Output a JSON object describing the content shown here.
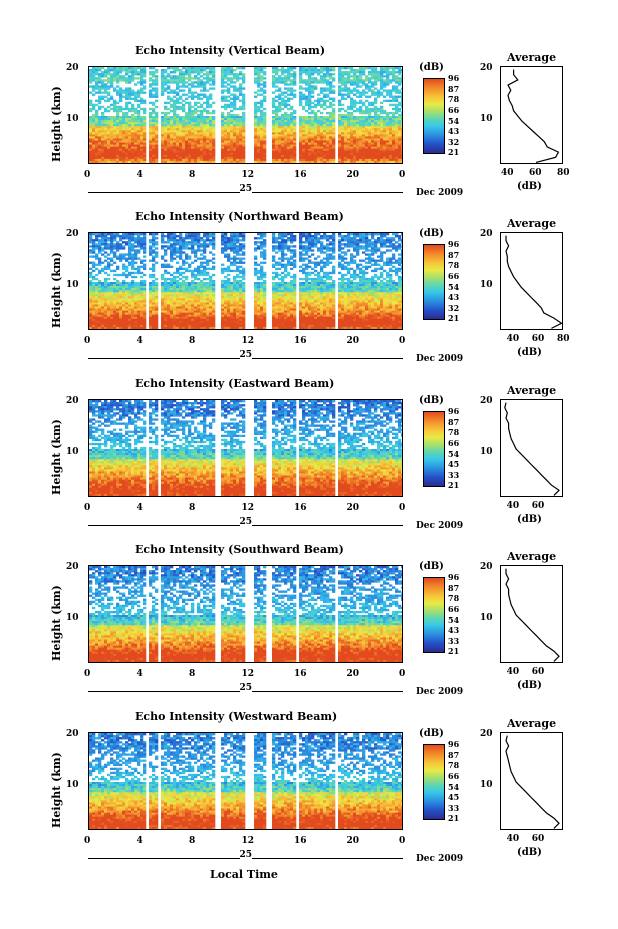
{
  "x_axis_label": "Local Time",
  "date_label": "Dec 2009",
  "day_label": "25",
  "colorbar_unit": "(dB)",
  "colorbar_ticks": [
    [
      "96",
      "87",
      "78",
      "66",
      "54",
      "43",
      "32",
      "21"
    ],
    [
      "96",
      "87",
      "78",
      "66",
      "54",
      "43",
      "32",
      "21"
    ],
    [
      "96",
      "87",
      "78",
      "66",
      "54",
      "45",
      "33",
      "21"
    ],
    [
      "96",
      "87",
      "78",
      "66",
      "54",
      "43",
      "33",
      "21"
    ],
    [
      "96",
      "87",
      "78",
      "66",
      "54",
      "45",
      "33",
      "21"
    ]
  ],
  "colors": {
    "low": "#2b2c8f",
    "mid": "#a7e06a",
    "high": "#e24a1f",
    "gap": "#ffffff"
  },
  "chart_data": [
    {
      "type": "heatmap",
      "title": "Echo Intensity (Vertical Beam)",
      "ylabel": "Height (km)",
      "xlabel": "Local Time",
      "x_ticks": [
        "0",
        "4",
        "8",
        "12",
        "16",
        "20",
        "0"
      ],
      "y_ticks": [
        "20",
        "10"
      ],
      "xlim": [
        0,
        24
      ],
      "ylim": [
        1.5,
        20.5
      ],
      "data_gaps_hours": [
        [
          4.3,
          4.6
        ],
        [
          5.2,
          5.5
        ],
        [
          9.7,
          10.0
        ],
        [
          12.0,
          12.5
        ],
        [
          13.6,
          14.0
        ],
        [
          15.8,
          16.1
        ],
        [
          16.8,
          17.0
        ],
        [
          18.7,
          19.0
        ]
      ],
      "colorbar": {
        "label": "(dB)",
        "min": 21,
        "max": 96
      },
      "average_profile": {
        "title": "Average",
        "xlabel": "(dB)",
        "x_ticks": [
          "40",
          "60",
          "80"
        ],
        "xlim": [
          35,
          80
        ],
        "y_ticks": [
          "20",
          "10"
        ],
        "height_km": [
          2,
          3,
          4,
          5,
          6,
          7,
          8,
          9,
          10,
          11,
          12,
          13,
          14,
          15,
          16,
          17,
          18,
          19,
          20
        ],
        "value_db": [
          60,
          74,
          76,
          68,
          66,
          62,
          58,
          54,
          50,
          47,
          44,
          43,
          41,
          40,
          42,
          40,
          47,
          44,
          44
        ]
      }
    },
    {
      "type": "heatmap",
      "title": "Echo Intensity (Northward Beam)",
      "ylabel": "Height (km)",
      "xlabel": "Local Time",
      "x_ticks": [
        "0",
        "4",
        "8",
        "12",
        "16",
        "20",
        "0"
      ],
      "y_ticks": [
        "20",
        "10"
      ],
      "xlim": [
        0,
        24
      ],
      "ylim": [
        1.5,
        20.5
      ],
      "data_gaps_hours": [
        [
          4.3,
          4.6
        ],
        [
          5.2,
          5.5
        ],
        [
          9.7,
          10.0
        ],
        [
          12.0,
          12.5
        ],
        [
          13.6,
          14.0
        ],
        [
          15.8,
          16.1
        ],
        [
          16.8,
          17.0
        ],
        [
          18.7,
          19.0
        ]
      ],
      "colorbar": {
        "label": "(dB)",
        "min": 21,
        "max": 96
      },
      "average_profile": {
        "title": "Average",
        "xlabel": "(dB)",
        "x_ticks": [
          "40",
          "60",
          "80"
        ],
        "xlim": [
          30,
          80
        ],
        "y_ticks": [
          "20",
          "10"
        ],
        "height_km": [
          2,
          3,
          4,
          5,
          6,
          7,
          8,
          9,
          10,
          11,
          12,
          13,
          14,
          15,
          16,
          17,
          18,
          19,
          20
        ],
        "value_db": [
          70,
          78,
          72,
          64,
          62,
          58,
          54,
          50,
          46,
          43,
          40,
          38,
          36,
          35,
          35,
          34,
          36,
          34,
          34
        ]
      }
    },
    {
      "type": "heatmap",
      "title": "Echo Intensity (Eastward Beam)",
      "ylabel": "Height (km)",
      "xlabel": "Local Time",
      "x_ticks": [
        "0",
        "4",
        "8",
        "12",
        "16",
        "20",
        "0"
      ],
      "y_ticks": [
        "20",
        "10"
      ],
      "xlim": [
        0,
        24
      ],
      "ylim": [
        1.5,
        20.5
      ],
      "data_gaps_hours": [
        [
          4.3,
          4.6
        ],
        [
          5.2,
          5.5
        ],
        [
          9.7,
          10.0
        ],
        [
          12.0,
          12.5
        ],
        [
          13.6,
          14.0
        ],
        [
          15.8,
          16.1
        ],
        [
          16.8,
          17.0
        ],
        [
          18.7,
          19.0
        ]
      ],
      "colorbar": {
        "label": "(dB)",
        "min": 21,
        "max": 96
      },
      "average_profile": {
        "title": "Average",
        "xlabel": "(dB)",
        "x_ticks": [
          "40",
          "60"
        ],
        "xlim": [
          30,
          80
        ],
        "y_ticks": [
          "20",
          "10"
        ],
        "height_km": [
          2,
          3,
          4,
          5,
          6,
          7,
          8,
          9,
          10,
          11,
          12,
          13,
          14,
          15,
          16,
          17,
          18,
          19,
          20
        ],
        "value_db": [
          72,
          76,
          70,
          66,
          62,
          58,
          54,
          50,
          46,
          42,
          40,
          38,
          37,
          36,
          36,
          34,
          35,
          33,
          34
        ]
      }
    },
    {
      "type": "heatmap",
      "title": "Echo Intensity (Southward Beam)",
      "ylabel": "Height (km)",
      "xlabel": "Local Time",
      "x_ticks": [
        "0",
        "4",
        "8",
        "12",
        "16",
        "20",
        "0"
      ],
      "y_ticks": [
        "20",
        "10"
      ],
      "xlim": [
        0,
        24
      ],
      "ylim": [
        1.5,
        20.5
      ],
      "data_gaps_hours": [
        [
          4.3,
          4.6
        ],
        [
          5.2,
          5.5
        ],
        [
          9.7,
          10.0
        ],
        [
          12.0,
          12.5
        ],
        [
          13.6,
          14.0
        ],
        [
          15.8,
          16.1
        ],
        [
          16.8,
          17.0
        ],
        [
          18.7,
          19.0
        ]
      ],
      "colorbar": {
        "label": "(dB)",
        "min": 21,
        "max": 96
      },
      "average_profile": {
        "title": "Average",
        "xlabel": "(dB)",
        "x_ticks": [
          "40",
          "60"
        ],
        "xlim": [
          30,
          80
        ],
        "y_ticks": [
          "20",
          "10"
        ],
        "height_km": [
          2,
          3,
          4,
          5,
          6,
          7,
          8,
          9,
          10,
          11,
          12,
          13,
          14,
          15,
          16,
          17,
          18,
          19,
          20
        ],
        "value_db": [
          72,
          76,
          72,
          66,
          62,
          58,
          54,
          50,
          46,
          42,
          40,
          38,
          37,
          36,
          36,
          34,
          36,
          34,
          34
        ]
      }
    },
    {
      "type": "heatmap",
      "title": "Echo Intensity (Westward Beam)",
      "ylabel": "Height (km)",
      "xlabel": "Local Time",
      "x_ticks": [
        "0",
        "4",
        "8",
        "12",
        "16",
        "20",
        "0"
      ],
      "y_ticks": [
        "20",
        "10"
      ],
      "xlim": [
        0,
        24
      ],
      "ylim": [
        1.5,
        20.5
      ],
      "data_gaps_hours": [
        [
          4.3,
          4.6
        ],
        [
          5.2,
          5.5
        ],
        [
          9.7,
          10.0
        ],
        [
          12.0,
          12.5
        ],
        [
          13.6,
          14.0
        ],
        [
          15.8,
          16.1
        ],
        [
          16.8,
          17.0
        ],
        [
          18.7,
          19.0
        ]
      ],
      "colorbar": {
        "label": "(dB)",
        "min": 21,
        "max": 96
      },
      "average_profile": {
        "title": "Average",
        "xlabel": "(dB)",
        "x_ticks": [
          "40",
          "60"
        ],
        "xlim": [
          30,
          80
        ],
        "y_ticks": [
          "20",
          "10"
        ],
        "height_km": [
          2,
          3,
          4,
          5,
          6,
          7,
          8,
          9,
          10,
          11,
          12,
          13,
          14,
          15,
          16,
          17,
          18,
          19,
          20
        ],
        "value_db": [
          72,
          76,
          72,
          66,
          62,
          58,
          54,
          50,
          46,
          42,
          40,
          38,
          37,
          36,
          35,
          34,
          36,
          34,
          35
        ]
      }
    }
  ]
}
